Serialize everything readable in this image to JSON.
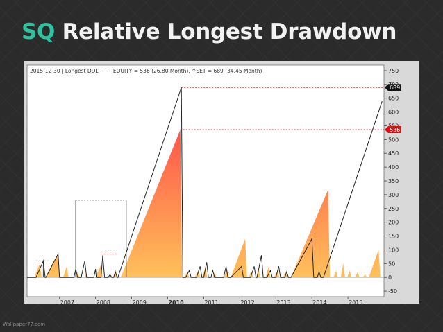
{
  "slide": {
    "title_accent": "SQ",
    "title_rest": "Relative Longest Drawdown",
    "watermark": "Wallpaper77.com"
  },
  "colors": {
    "accent": "#2ec4a0",
    "background": "#2b2b2b",
    "frame": "#d9d9d9",
    "plot_background": "#ffffff",
    "area_top": "#ff5a4a",
    "area_bottom": "#ffc05a",
    "line": "#222222",
    "ref_line": "#cc0000",
    "set_badge": "#111111",
    "equity_badge": "#dd1111"
  },
  "chart_data": {
    "type": "area",
    "title": "2015-12-30  |  Longest DDL ~~~EQUITY = 536 (26.80 Month), ^SET = 689 (34.45 Month)",
    "x_tick_labels": [
      "2007",
      "2008",
      "2009",
      "2010",
      "2011",
      "2012",
      "2013",
      "2014",
      "2015"
    ],
    "x_tick_positions": [
      2007,
      2008,
      2009,
      2010,
      2011,
      2012,
      2013,
      2014,
      2015
    ],
    "xlim": [
      2006.1,
      2016.0
    ],
    "ylim": [
      -70,
      770
    ],
    "y_ticks": [
      -50,
      0,
      50,
      100,
      150,
      200,
      250,
      300,
      350,
      400,
      450,
      500,
      550,
      600,
      650,
      700,
      750
    ],
    "grid": false,
    "series": [
      {
        "name": "EQUITY",
        "style": "area",
        "last_value": 536,
        "points": [
          [
            2006.1,
            0
          ],
          [
            2006.3,
            0
          ],
          [
            2006.45,
            50
          ],
          [
            2006.5,
            0
          ],
          [
            2006.6,
            0
          ],
          [
            2006.95,
            85
          ],
          [
            2007.0,
            0
          ],
          [
            2007.1,
            0
          ],
          [
            2007.2,
            40
          ],
          [
            2007.25,
            0
          ],
          [
            2007.45,
            0
          ],
          [
            2007.5,
            20
          ],
          [
            2007.55,
            0
          ],
          [
            2007.7,
            0
          ],
          [
            2007.75,
            15
          ],
          [
            2007.8,
            0
          ],
          [
            2008.0,
            0
          ],
          [
            2008.15,
            45
          ],
          [
            2008.2,
            0
          ],
          [
            2008.5,
            0
          ],
          [
            2008.55,
            30
          ],
          [
            2008.6,
            0
          ],
          [
            2008.7,
            0
          ],
          [
            2010.35,
            536
          ],
          [
            2010.4,
            0
          ],
          [
            2010.45,
            0
          ],
          [
            2010.55,
            20
          ],
          [
            2010.6,
            0
          ],
          [
            2010.75,
            0
          ],
          [
            2010.85,
            25
          ],
          [
            2010.9,
            0
          ],
          [
            2010.95,
            0
          ],
          [
            2011.05,
            35
          ],
          [
            2011.1,
            0
          ],
          [
            2011.25,
            0
          ],
          [
            2011.3,
            20
          ],
          [
            2011.35,
            0
          ],
          [
            2011.55,
            0
          ],
          [
            2011.65,
            30
          ],
          [
            2011.7,
            0
          ],
          [
            2011.75,
            0
          ],
          [
            2012.15,
            140
          ],
          [
            2012.2,
            0
          ],
          [
            2012.25,
            0
          ],
          [
            2012.32,
            25
          ],
          [
            2012.37,
            0
          ],
          [
            2012.45,
            0
          ],
          [
            2012.52,
            30
          ],
          [
            2012.57,
            0
          ],
          [
            2012.72,
            0
          ],
          [
            2012.8,
            40
          ],
          [
            2012.85,
            0
          ],
          [
            2012.95,
            0
          ],
          [
            2013.05,
            25
          ],
          [
            2013.1,
            0
          ],
          [
            2013.2,
            0
          ],
          [
            2013.27,
            20
          ],
          [
            2013.32,
            0
          ],
          [
            2013.42,
            0
          ],
          [
            2014.45,
            318
          ],
          [
            2014.5,
            0
          ],
          [
            2014.6,
            0
          ],
          [
            2014.67,
            25
          ],
          [
            2014.72,
            0
          ],
          [
            2014.8,
            0
          ],
          [
            2014.87,
            50
          ],
          [
            2014.92,
            0
          ],
          [
            2014.98,
            0
          ],
          [
            2015.05,
            25
          ],
          [
            2015.1,
            0
          ],
          [
            2015.2,
            0
          ],
          [
            2015.27,
            20
          ],
          [
            2015.32,
            0
          ],
          [
            2015.4,
            0
          ],
          [
            2015.48,
            10
          ],
          [
            2015.53,
            0
          ],
          [
            2015.58,
            0
          ],
          [
            2015.85,
            100
          ],
          [
            2015.9,
            0
          ],
          [
            2016.0,
            0
          ]
        ]
      },
      {
        "name": "SET",
        "style": "line",
        "last_value": 689,
        "points": [
          [
            2006.1,
            0
          ],
          [
            2006.35,
            0
          ],
          [
            2006.55,
            60
          ],
          [
            2006.6,
            0
          ],
          [
            2006.62,
            0
          ],
          [
            2006.96,
            85
          ],
          [
            2007.0,
            0
          ],
          [
            2007.05,
            0
          ],
          [
            2007.4,
            0
          ],
          [
            2007.45,
            30
          ],
          [
            2007.5,
            0
          ],
          [
            2007.6,
            0
          ],
          [
            2007.7,
            60
          ],
          [
            2007.75,
            0
          ],
          [
            2007.95,
            0
          ],
          [
            2008.0,
            30
          ],
          [
            2008.02,
            0
          ],
          [
            2008.15,
            0
          ],
          [
            2008.2,
            80
          ],
          [
            2008.25,
            0
          ],
          [
            2008.35,
            0
          ],
          [
            2008.4,
            10
          ],
          [
            2008.45,
            0
          ],
          [
            2008.5,
            0
          ],
          [
            2008.55,
            20
          ],
          [
            2008.6,
            0
          ],
          [
            2008.62,
            0
          ],
          [
            2010.38,
            689
          ],
          [
            2010.42,
            0
          ],
          [
            2010.5,
            0
          ],
          [
            2010.6,
            25
          ],
          [
            2010.65,
            0
          ],
          [
            2010.8,
            0
          ],
          [
            2010.9,
            40
          ],
          [
            2010.95,
            0
          ],
          [
            2011.0,
            0
          ],
          [
            2011.08,
            55
          ],
          [
            2011.13,
            0
          ],
          [
            2011.2,
            0
          ],
          [
            2011.25,
            25
          ],
          [
            2011.3,
            0
          ],
          [
            2011.55,
            0
          ],
          [
            2011.62,
            40
          ],
          [
            2011.67,
            0
          ],
          [
            2011.75,
            0
          ],
          [
            2012.05,
            40
          ],
          [
            2012.1,
            0
          ],
          [
            2012.3,
            0
          ],
          [
            2012.4,
            40
          ],
          [
            2012.45,
            0
          ],
          [
            2012.48,
            0
          ],
          [
            2012.6,
            80
          ],
          [
            2012.65,
            0
          ],
          [
            2012.75,
            0
          ],
          [
            2012.85,
            25
          ],
          [
            2012.9,
            0
          ],
          [
            2013.0,
            0
          ],
          [
            2013.08,
            40
          ],
          [
            2013.13,
            0
          ],
          [
            2013.25,
            0
          ],
          [
            2013.3,
            20
          ],
          [
            2013.35,
            0
          ],
          [
            2013.42,
            0
          ],
          [
            2014.0,
            140
          ],
          [
            2014.05,
            0
          ],
          [
            2014.15,
            0
          ],
          [
            2014.2,
            20
          ],
          [
            2014.25,
            0
          ],
          [
            2014.32,
            0
          ],
          [
            2015.95,
            640
          ]
        ]
      }
    ],
    "reference_lines": [
      {
        "value": 689,
        "style": "dotted",
        "color": "#cc0000",
        "x_from": 2010.38
      },
      {
        "value": 536,
        "style": "dotted",
        "color": "#cc0000",
        "x_from": 2010.35
      },
      {
        "value": 280,
        "style": "dotted",
        "color": "#333333",
        "x_from": 2007.45,
        "x_to": 2008.85
      },
      {
        "value": 85,
        "style": "dotted",
        "color": "#cc0000",
        "x_from": 2008.15,
        "x_to": 2008.6
      },
      {
        "value": 60,
        "style": "dotted",
        "color": "#333333",
        "x_from": 2006.35,
        "x_to": 2006.72
      }
    ],
    "vertical_lines": [
      {
        "x": 2007.45,
        "from": 0,
        "to": 280
      },
      {
        "x": 2008.85,
        "from": 0,
        "to": 280
      },
      {
        "x": 2006.55,
        "from": 0,
        "to": 60
      }
    ],
    "badges": [
      {
        "series": "SET",
        "value": 689,
        "text": "689"
      },
      {
        "series": "EQUITY",
        "value": 536,
        "text": "536"
      }
    ],
    "bold_tick": "2010"
  }
}
